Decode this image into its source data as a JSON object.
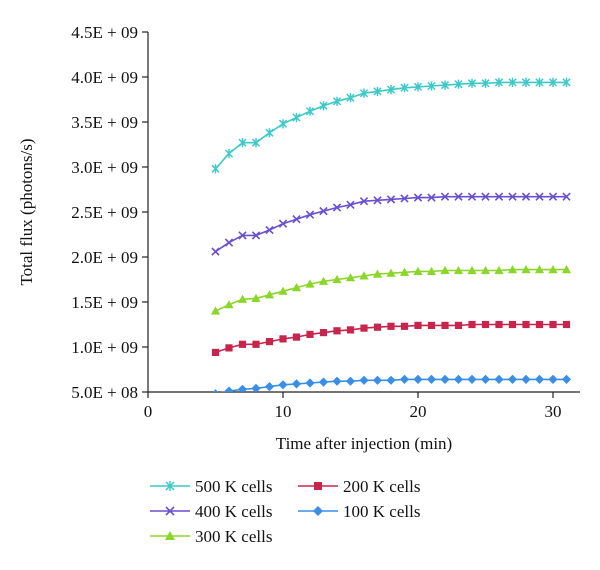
{
  "chart_data": {
    "type": "line",
    "xlabel": "Time after injection (min)",
    "ylabel": "Total flux (photons/s)",
    "xlim": [
      0,
      32
    ],
    "ylim": [
      500000000,
      4500000000
    ],
    "x_ticks": [
      0,
      10,
      20,
      30
    ],
    "x_tick_labels": [
      "0",
      "10",
      "20",
      "30"
    ],
    "y_ticks": [
      500000000,
      1000000000,
      1500000000,
      2000000000,
      2500000000,
      3000000000,
      3500000000,
      4000000000,
      4500000000
    ],
    "y_tick_labels": [
      "5.0E + 08",
      "1.0E + 09",
      "1.5E + 09",
      "2.0E + 09",
      "2.5E + 09",
      "3.0E + 09",
      "3.5E + 09",
      "4.0E + 09",
      "4.5E + 09"
    ],
    "grid": false,
    "legend_position": "bottom",
    "x": [
      5,
      6,
      7,
      8,
      9,
      10,
      11,
      12,
      13,
      14,
      15,
      16,
      17,
      18,
      19,
      20,
      21,
      22,
      23,
      24,
      25,
      26,
      27,
      28,
      29,
      30,
      31
    ],
    "series": [
      {
        "name": "500 K cells",
        "color": "#3ec9c9",
        "marker": "asterisk",
        "values": [
          2980000000,
          3150000000,
          3270000000,
          3270000000,
          3380000000,
          3480000000,
          3550000000,
          3620000000,
          3680000000,
          3730000000,
          3770000000,
          3820000000,
          3840000000,
          3860000000,
          3880000000,
          3890000000,
          3900000000,
          3910000000,
          3920000000,
          3930000000,
          3930000000,
          3940000000,
          3940000000,
          3940000000,
          3940000000,
          3940000000,
          3940000000
        ]
      },
      {
        "name": "400 K cells",
        "color": "#6a4fcf",
        "marker": "x",
        "values": [
          2060000000,
          2160000000,
          2240000000,
          2240000000,
          2300000000,
          2370000000,
          2420000000,
          2470000000,
          2510000000,
          2550000000,
          2580000000,
          2620000000,
          2630000000,
          2640000000,
          2650000000,
          2660000000,
          2660000000,
          2670000000,
          2670000000,
          2670000000,
          2670000000,
          2670000000,
          2670000000,
          2670000000,
          2670000000,
          2670000000,
          2670000000
        ]
      },
      {
        "name": "300 K cells",
        "color": "#8bd62a",
        "marker": "triangle",
        "values": [
          1400000000,
          1470000000,
          1530000000,
          1540000000,
          1580000000,
          1620000000,
          1660000000,
          1700000000,
          1730000000,
          1750000000,
          1770000000,
          1790000000,
          1810000000,
          1820000000,
          1830000000,
          1840000000,
          1840000000,
          1850000000,
          1850000000,
          1850000000,
          1850000000,
          1850000000,
          1860000000,
          1860000000,
          1860000000,
          1860000000,
          1860000000
        ]
      },
      {
        "name": "200 K cells",
        "color": "#c7254e",
        "marker": "square",
        "values": [
          940000000,
          990000000,
          1030000000,
          1030000000,
          1060000000,
          1090000000,
          1110000000,
          1140000000,
          1160000000,
          1180000000,
          1190000000,
          1210000000,
          1220000000,
          1230000000,
          1230000000,
          1240000000,
          1240000000,
          1240000000,
          1240000000,
          1250000000,
          1250000000,
          1250000000,
          1250000000,
          1250000000,
          1250000000,
          1250000000,
          1250000000
        ]
      },
      {
        "name": "100 K cells",
        "color": "#3a8ee6",
        "marker": "diamond",
        "values": [
          480000000,
          510000000,
          530000000,
          540000000,
          560000000,
          580000000,
          590000000,
          600000000,
          610000000,
          620000000,
          620000000,
          630000000,
          630000000,
          630000000,
          640000000,
          640000000,
          640000000,
          640000000,
          640000000,
          640000000,
          640000000,
          640000000,
          640000000,
          640000000,
          640000000,
          640000000,
          640000000
        ]
      }
    ],
    "legend_order": [
      0,
      3,
      1,
      4,
      2
    ]
  }
}
